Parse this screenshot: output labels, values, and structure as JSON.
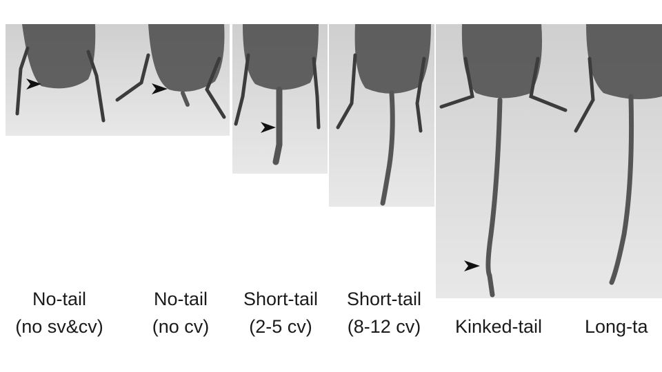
{
  "panels": [
    {
      "label": [
        "No-tail",
        "(no sv&cv)"
      ]
    },
    {
      "label": [
        "No-tail",
        "(no cv)"
      ]
    },
    {
      "label": [
        "Short-tail",
        "(2-5 cv)"
      ]
    },
    {
      "label": [
        "Short-tail",
        "(8-12 cv)"
      ]
    },
    {
      "label": [
        "Kinked-tail"
      ]
    },
    {
      "label": [
        "Long-ta"
      ]
    }
  ]
}
